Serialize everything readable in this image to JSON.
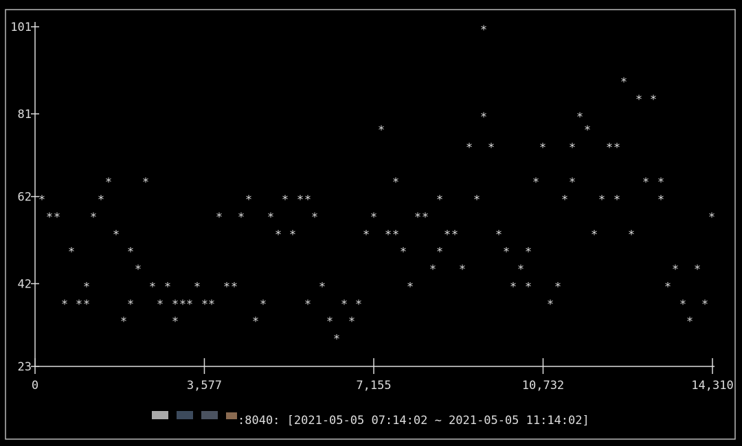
{
  "chart_data": {
    "type": "scatter",
    "marker": "*",
    "color": "#dddddd",
    "xlim": [
      0,
      14310
    ],
    "ylim": [
      23,
      101
    ],
    "xticks": [
      0,
      {
        "value": 3577,
        "label": "3,577"
      },
      {
        "value": 7155,
        "label": "7,155"
      },
      {
        "value": 10732,
        "label": "10,732"
      },
      {
        "value": 14310,
        "label": "14,310"
      }
    ],
    "yticks": [
      23,
      42,
      62,
      81,
      101
    ],
    "x": [
      145,
      305,
      464,
      624,
      769,
      929,
      1088,
      1088,
      1234,
      1393,
      1553,
      1713,
      1872,
      2017,
      2017,
      2177,
      2337,
      2482,
      2641,
      2801,
      2961,
      2961,
      3120,
      3265,
      3425,
      3585,
      3730,
      3889,
      4049,
      4209,
      4354,
      4514,
      4659,
      4818,
      4978,
      5138,
      5283,
      5442,
      5602,
      5762,
      5762,
      5907,
      6066,
      6226,
      6371,
      6531,
      6690,
      6836,
      6995,
      7155,
      7315,
      7460,
      7619,
      7619,
      7779,
      7924,
      8084,
      8243,
      8403,
      8548,
      8548,
      8708,
      8867,
      9027,
      9172,
      9332,
      9477,
      9477,
      9637,
      9796,
      9956,
      10101,
      10261,
      10420,
      10420,
      10580,
      10725,
      10885,
      11044,
      11190,
      11349,
      11349,
      11509,
      11668,
      11813,
      11973,
      12133,
      12292,
      12292,
      12438,
      12597,
      12757,
      12902,
      13062,
      13221,
      13221,
      13367,
      13526,
      13686,
      13831,
      13990,
      14150,
      14295
    ],
    "values": [
      62,
      58,
      58,
      38,
      50,
      38,
      38,
      42,
      58,
      62,
      66,
      54,
      34,
      50,
      38,
      46,
      66,
      42,
      38,
      42,
      38,
      34,
      38,
      38,
      42,
      38,
      38,
      58,
      42,
      42,
      58,
      62,
      34,
      38,
      58,
      54,
      62,
      54,
      62,
      62,
      38,
      58,
      42,
      34,
      30,
      38,
      34,
      38,
      54,
      58,
      78,
      54,
      54,
      66,
      50,
      42,
      58,
      58,
      46,
      62,
      50,
      54,
      54,
      46,
      74,
      62,
      101,
      81,
      74,
      54,
      50,
      42,
      46,
      50,
      42,
      66,
      74,
      38,
      42,
      62,
      74,
      66,
      81,
      78,
      54,
      62,
      74,
      74,
      62,
      89,
      54,
      85,
      66,
      85,
      66,
      62,
      42,
      46,
      38,
      34,
      46,
      38,
      58
    ],
    "caption": ":8040: [2021-05-05 07:14:02 ~ 2021-05-05 11:14:02]"
  }
}
